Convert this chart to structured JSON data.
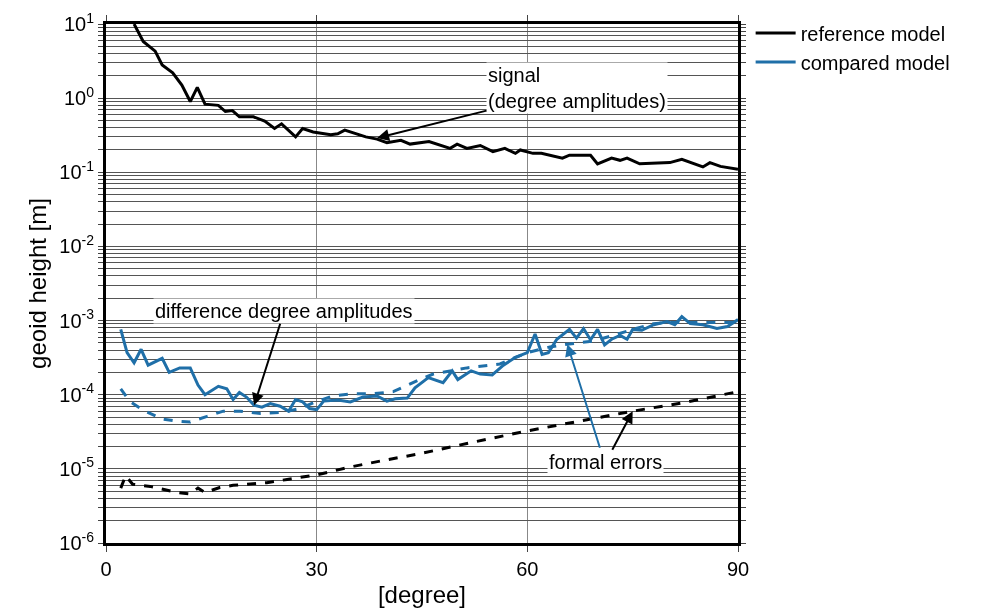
{
  "chart_data": {
    "type": "line",
    "xlabel": "[degree]",
    "ylabel": "geoid height [m]",
    "log": "y",
    "grid": true,
    "legend": "top right",
    "line_style": "solid",
    "marker": "none",
    "xlim": [
      0,
      90
    ],
    "xticks": [
      0,
      30,
      60,
      90
    ],
    "ylim": [
      1e-06,
      10
    ],
    "yticks": [
      {
        "value": 1e-06,
        "label": "10$^{-6}$"
      },
      {
        "value": 2e-06,
        "label": null
      },
      {
        "value": 3e-06,
        "label": null
      },
      {
        "value": 4e-06,
        "label": null
      },
      {
        "value": 5e-06,
        "label": null
      },
      {
        "value": 6e-06,
        "label": null
      },
      {
        "value": 7e-06,
        "label": null
      },
      {
        "value": 8e-06,
        "label": null
      },
      {
        "value": 9e-06,
        "label": null
      },
      {
        "value": 1e-05,
        "label": "10$^{-5}$"
      },
      {
        "value": 2e-05,
        "label": null
      },
      {
        "value": 3e-05,
        "label": null
      },
      {
        "value": 4e-05,
        "label": null
      },
      {
        "value": 5e-05,
        "label": null
      },
      {
        "value": 6e-05,
        "label": null
      },
      {
        "value": 7e-05,
        "label": null
      },
      {
        "value": 8e-05,
        "label": null
      },
      {
        "value": 9e-05,
        "label": null
      },
      {
        "value": 0.0001,
        "label": "10$^{-4}$"
      },
      {
        "value": 0.0002,
        "label": null
      },
      {
        "value": 0.0003,
        "label": null
      },
      {
        "value": 0.0004,
        "label": null
      },
      {
        "value": 0.0005,
        "label": null
      },
      {
        "value": 0.0006,
        "label": null
      },
      {
        "value": 0.0007,
        "label": null
      },
      {
        "value": 0.0008,
        "label": null
      },
      {
        "value": 0.0009,
        "label": null
      },
      {
        "value": 0.001,
        "label": "10$^{-3}$"
      },
      {
        "value": 0.002,
        "label": null
      },
      {
        "value": 0.003,
        "label": null
      },
      {
        "value": 0.004,
        "label": null
      },
      {
        "value": 0.005,
        "label": null
      },
      {
        "value": 0.006,
        "label": null
      },
      {
        "value": 0.007,
        "label": null
      },
      {
        "value": 0.008,
        "label": null
      },
      {
        "value": 0.009,
        "label": null
      },
      {
        "value": 0.01,
        "label": "10$^{-2}$"
      },
      {
        "value": 0.02,
        "label": null
      },
      {
        "value": 0.03,
        "label": null
      },
      {
        "value": 0.04,
        "label": null
      },
      {
        "value": 0.05,
        "label": null
      },
      {
        "value": 0.06,
        "label": null
      },
      {
        "value": 0.07,
        "label": null
      },
      {
        "value": 0.08,
        "label": null
      },
      {
        "value": 0.09,
        "label": null
      },
      {
        "value": 0.1,
        "label": "10$^{-1}$"
      },
      {
        "value": 0.2,
        "label": null
      },
      {
        "value": 0.3,
        "label": null
      },
      {
        "value": 0.4,
        "label": null
      },
      {
        "value": 0.5,
        "label": null
      },
      {
        "value": 0.6,
        "label": null
      },
      {
        "value": 0.7,
        "label": null
      },
      {
        "value": 0.8,
        "label": null
      },
      {
        "value": 0.9,
        "label": null
      },
      {
        "value": 1,
        "label": "10$^{0}$"
      },
      {
        "value": 2,
        "label": null
      },
      {
        "value": 3,
        "label": null
      },
      {
        "value": 4,
        "label": null
      },
      {
        "value": 5,
        "label": null
      },
      {
        "value": 6,
        "label": null
      },
      {
        "value": 7,
        "label": null
      },
      {
        "value": 8,
        "label": null
      },
      {
        "value": 9,
        "label": null
      },
      {
        "value": 10,
        "label": "10$^{1}$"
      }
    ],
    "series": [
      {
        "name": "reference model",
        "color": "#000000",
        "x": [
          4,
          5.3,
          7,
          8,
          9.5,
          10.8,
          12,
          13,
          14.1,
          16,
          17,
          18,
          19,
          21,
          22.6,
          24,
          25,
          27,
          28,
          29.5,
          32,
          33,
          34,
          37,
          38.6,
          40,
          42,
          43.3,
          46,
          49,
          50,
          51.4,
          53.3,
          55.1,
          56.8,
          58.3,
          59,
          60.8,
          62,
          65,
          66,
          69,
          70,
          72,
          73.2,
          74.2,
          76,
          80.3,
          82,
          85,
          86,
          87.5,
          90
        ],
        "values": [
          10,
          5.8,
          4.3,
          2.8,
          2.2,
          1.5,
          0.9,
          1.4,
          0.83,
          0.8,
          0.66,
          0.68,
          0.56,
          0.56,
          0.49,
          0.39,
          0.45,
          0.3,
          0.39,
          0.35,
          0.32,
          0.33,
          0.37,
          0.3,
          0.28,
          0.25,
          0.27,
          0.24,
          0.26,
          0.21,
          0.24,
          0.21,
          0.23,
          0.19,
          0.21,
          0.18,
          0.2,
          0.18,
          0.18,
          0.155,
          0.17,
          0.17,
          0.13,
          0.155,
          0.145,
          0.155,
          0.13,
          0.135,
          0.15,
          0.118,
          0.135,
          0.12,
          0.11
        ]
      },
      {
        "color": "#000000",
        "line_style": "dashed",
        "x": [
          2.1,
          2.8,
          3.8,
          6.3,
          10.1,
          12,
          13.1,
          14.1,
          16.2,
          18.1,
          22.9,
          25.8,
          30,
          34.8,
          39.5,
          44.7,
          51.4,
          60,
          68.5,
          75,
          82.2,
          90
        ],
        "values": [
          5.5e-06,
          8.1e-06,
          6.2e-06,
          5.8e-06,
          4.8e-06,
          4.6e-06,
          5.5e-06,
          4.8e-06,
          5.6e-06,
          6e-06,
          6.5e-06,
          7.2e-06,
          8.3e-06,
          1.06e-05,
          1.3e-05,
          1.6e-05,
          2.2e-05,
          3.25e-05,
          4.6e-05,
          6e-05,
          7.8e-05,
          0.00011
        ]
      },
      {
        "name": "compared model",
        "color": "#1f6fa8",
        "x": [
          2.1,
          3,
          4,
          5,
          6,
          8,
          9,
          10.5,
          12,
          13.1,
          14.1,
          16,
          17.2,
          18.1,
          19,
          20,
          21.1,
          22.2,
          23.4,
          24.8,
          26,
          27,
          28,
          29,
          30,
          31,
          33,
          34.8,
          36.6,
          38.6,
          40,
          41.2,
          42.9,
          44,
          45.9,
          48,
          49.3,
          50.1,
          52,
          53.3,
          55,
          56.6,
          58.3,
          60,
          61.1,
          62.1,
          63,
          64.2,
          66,
          67,
          68,
          69,
          70,
          71,
          72,
          73.2,
          74.2,
          75,
          76.3,
          78,
          79.9,
          81,
          82,
          83.2,
          85,
          87,
          88.5,
          90
        ],
        "values": [
          0.00076,
          0.00037,
          0.00027,
          0.00041,
          0.00025,
          0.00031,
          0.0002,
          0.00023,
          0.00023,
          0.000135,
          0.0001,
          0.00013,
          0.00012,
          8.6e-05,
          0.000107,
          9.3e-05,
          7.2e-05,
          6.8e-05,
          7.6e-05,
          7e-05,
          6e-05,
          8.6e-05,
          8e-05,
          6.5e-05,
          6.3e-05,
          8.2e-05,
          8.5e-05,
          8e-05,
          9.3e-05,
          9.6e-05,
          8.2e-05,
          8.8e-05,
          9e-05,
          0.000124,
          0.00017,
          0.000145,
          0.00021,
          0.00016,
          0.00021,
          0.00019,
          0.000185,
          0.00025,
          0.00032,
          0.00037,
          0.00066,
          0.00035,
          0.00037,
          0.00056,
          0.00076,
          0.00058,
          0.00078,
          0.00055,
          0.00076,
          0.00047,
          0.00056,
          0.00063,
          0.00056,
          0.00076,
          0.00074,
          0.00088,
          0.00097,
          0.00088,
          0.00113,
          0.00091,
          0.00088,
          0.00078,
          0.00083,
          0.00103
        ]
      },
      {
        "color": "#1f6fa8",
        "line_style": "dashed",
        "x": [
          2.1,
          3.4,
          5.3,
          8,
          10.1,
          12,
          14.4,
          16.7,
          19.1,
          22,
          25.2,
          27.6,
          30,
          32.4,
          35.2,
          38,
          40.9,
          44.7,
          46.6,
          51.4,
          56.1,
          60,
          63.2,
          65.7,
          69.4,
          72.2,
          75,
          78,
          80,
          84.6,
          90
        ],
        "values": [
          0.00012,
          8.1e-05,
          6.2e-05,
          4.7e-05,
          4.4e-05,
          4.3e-05,
          5.1e-05,
          6e-05,
          6e-05,
          5.6e-05,
          5.8e-05,
          6.5e-05,
          8.1e-05,
          9.7e-05,
          0.000103,
          0.000103,
          0.00011,
          0.00016,
          0.00019,
          0.00023,
          0.00026,
          0.00037,
          0.00044,
          0.00048,
          0.00053,
          0.00063,
          0.00076,
          0.00091,
          0.00094,
          0.00094,
          0.00094
        ]
      }
    ],
    "annotations": [
      {
        "text": "signal\n(degree amplitudes)",
        "x": 38.6,
        "y": 0.29
      },
      {
        "text": "difference degree amplitudes",
        "x": 21.1,
        "y": 7.2e-05
      },
      {
        "text": "formal errors",
        "x": 75,
        "y": 6e-05
      }
    ]
  }
}
